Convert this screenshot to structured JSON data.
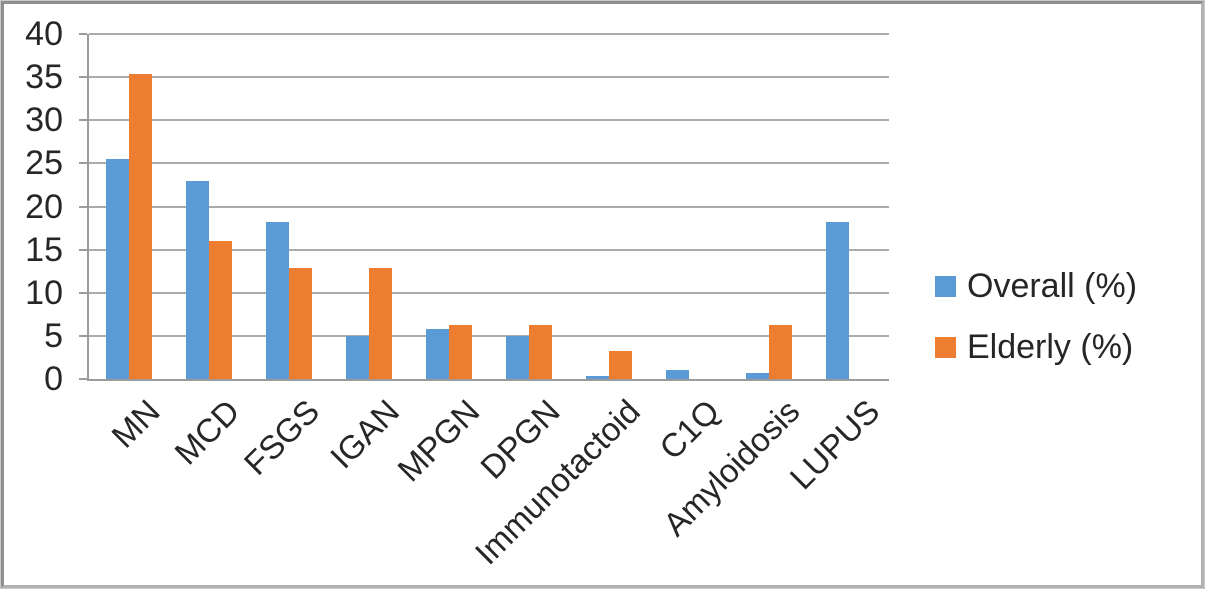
{
  "chart_data": {
    "type": "bar",
    "categories": [
      "MN",
      "MCD",
      "FSGS",
      "IGAN",
      "MPGN",
      "DPGN",
      "Immunotactoid",
      "C1Q",
      "Amyloidosis",
      "LUPUS"
    ],
    "series": [
      {
        "name": "Overall (%)",
        "color": "#5B9BD5",
        "values": [
          25.5,
          23.0,
          18.2,
          5.0,
          5.8,
          5.0,
          0.4,
          1.1,
          0.7,
          18.2
        ]
      },
      {
        "name": "Elderly (%)",
        "color": "#ED7D31",
        "values": [
          35.4,
          16.0,
          12.9,
          12.9,
          6.3,
          6.3,
          3.2,
          0,
          6.3,
          0
        ]
      }
    ],
    "ylim": [
      0,
      40
    ],
    "ytick_step": 5,
    "ytick_labels": [
      "0",
      "5",
      "10",
      "15",
      "20",
      "25",
      "30",
      "35",
      "40"
    ],
    "grid": true,
    "legend_position": "right"
  },
  "style": {
    "grid_color": "#ABABAB",
    "axis_color": "#9B9B9B",
    "text_color": "#262626",
    "background": "#FFFFFF"
  }
}
